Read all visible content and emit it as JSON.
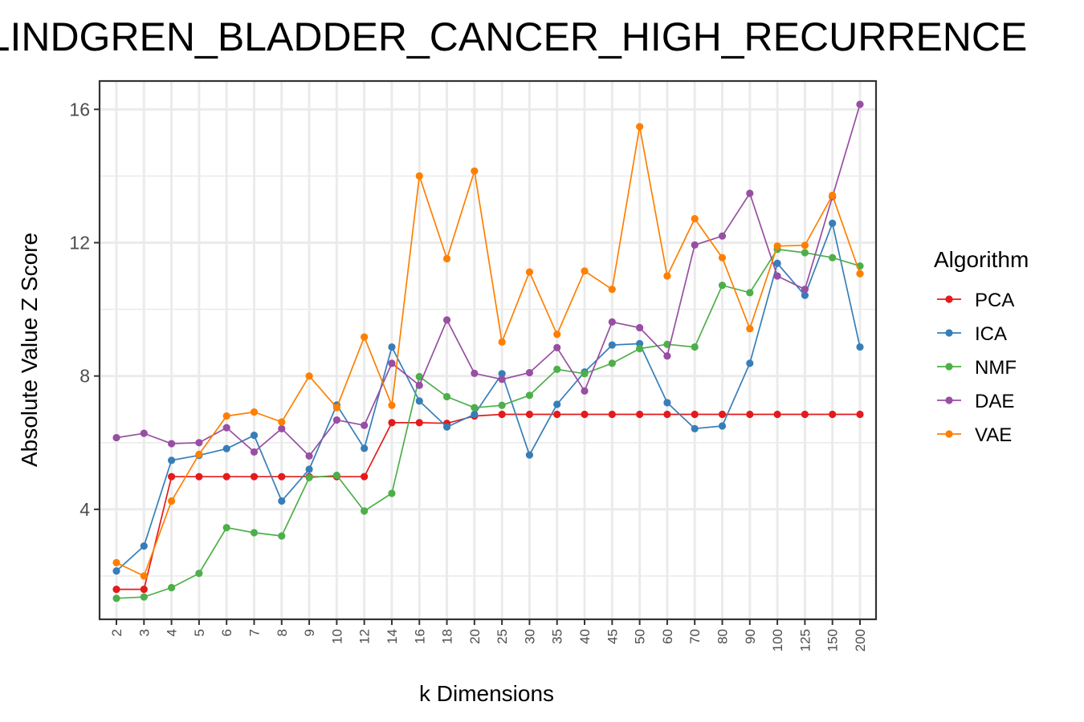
{
  "chart_data": {
    "type": "line",
    "title": "LINDGREN_BLADDER_CANCER_HIGH_RECURRENCE",
    "xlabel": "k Dimensions",
    "ylabel": "Absolute Value Z Score",
    "categories": [
      "2",
      "3",
      "4",
      "5",
      "6",
      "7",
      "8",
      "9",
      "10",
      "12",
      "14",
      "16",
      "18",
      "20",
      "25",
      "30",
      "35",
      "40",
      "45",
      "50",
      "60",
      "70",
      "80",
      "90",
      "100",
      "125",
      "150",
      "200"
    ],
    "ylim": [
      0.7,
      16.85
    ],
    "yticks": [
      4,
      8,
      12,
      16
    ],
    "grid": true,
    "legend": {
      "title": "Algorithm",
      "position": "right"
    },
    "series": [
      {
        "name": "PCA",
        "color": "#e41a1c",
        "values": [
          1.6,
          1.6,
          4.98,
          4.98,
          4.98,
          4.98,
          4.98,
          4.98,
          4.98,
          4.98,
          6.6,
          6.6,
          6.58,
          6.8,
          6.85,
          6.85,
          6.85,
          6.85,
          6.85,
          6.85,
          6.85,
          6.85,
          6.85,
          6.85,
          6.85,
          6.85,
          6.85,
          6.85
        ]
      },
      {
        "name": "ICA",
        "color": "#377eb8",
        "values": [
          2.15,
          2.9,
          5.47,
          5.62,
          5.82,
          6.22,
          4.25,
          5.2,
          7.13,
          5.83,
          8.87,
          7.25,
          6.47,
          6.85,
          8.07,
          5.63,
          7.15,
          8.12,
          8.93,
          8.97,
          7.2,
          6.42,
          6.5,
          8.38,
          11.38,
          10.42,
          12.58,
          8.87
        ]
      },
      {
        "name": "NMF",
        "color": "#4daf4a",
        "values": [
          1.33,
          1.37,
          1.65,
          2.08,
          3.45,
          3.3,
          3.2,
          4.95,
          5.02,
          3.95,
          4.48,
          7.98,
          7.38,
          7.05,
          7.12,
          7.42,
          8.2,
          8.07,
          8.38,
          8.82,
          8.95,
          8.87,
          10.72,
          10.5,
          11.8,
          11.7,
          11.55,
          11.3
        ]
      },
      {
        "name": "DAE",
        "color": "#984ea3",
        "values": [
          6.15,
          6.28,
          5.97,
          6.0,
          6.45,
          5.72,
          6.42,
          5.6,
          6.68,
          6.52,
          8.38,
          7.72,
          9.68,
          8.08,
          7.9,
          8.1,
          8.85,
          7.55,
          9.62,
          9.45,
          8.6,
          11.93,
          12.2,
          13.48,
          11.0,
          10.6,
          13.38,
          16.15
        ]
      },
      {
        "name": "VAE",
        "color": "#ff7f00",
        "values": [
          2.4,
          2.0,
          4.25,
          5.65,
          6.8,
          6.92,
          6.62,
          8.0,
          7.05,
          9.17,
          7.12,
          14.0,
          11.52,
          14.15,
          9.02,
          11.12,
          9.25,
          11.15,
          10.6,
          15.48,
          11.0,
          12.72,
          11.55,
          9.42,
          11.9,
          11.92,
          13.42,
          11.07
        ]
      }
    ]
  }
}
